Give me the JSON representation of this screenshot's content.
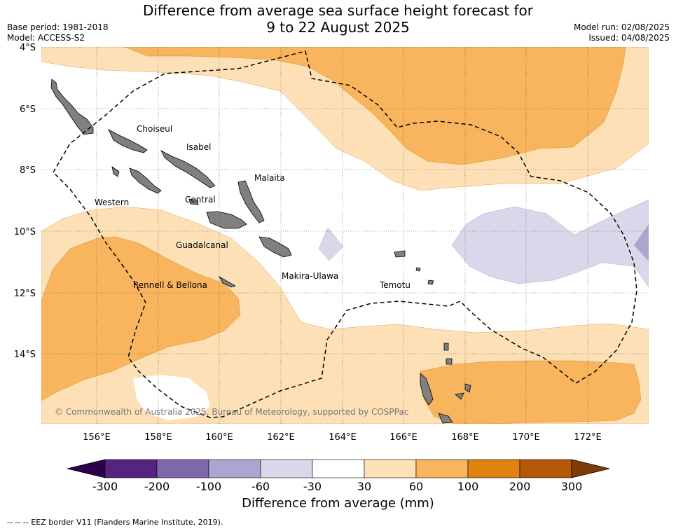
{
  "title": {
    "line1": "Difference from average sea surface height forecast for",
    "line2": "9 to 22 August 2025"
  },
  "meta_left": {
    "base_period": "Base period: 1981-2018",
    "model": "Model: ACCESS-S2"
  },
  "meta_right": {
    "model_run": "Model run: 02/08/2025",
    "issued": "Issued: 04/08/2025"
  },
  "lat_labels": [
    "4°S",
    "6°S",
    "8°S",
    "10°S",
    "12°S",
    "14°S"
  ],
  "lon_labels": [
    "156°E",
    "158°E",
    "160°E",
    "162°E",
    "164°E",
    "166°E",
    "168°E",
    "170°E",
    "172°E"
  ],
  "regions": {
    "choiseul": "Choiseul",
    "isabel": "Isabel",
    "malaita": "Malaita",
    "western": "Western",
    "central": "Central",
    "guadalcanal": "Guadalcanal",
    "makira": "Makira-Ulawa",
    "rennell": "Rennell & Bellona",
    "temotu": "Temotu"
  },
  "copyright": "© Commonwealth of Australia 2025, Bureau of Meteorology, supported by COSPPac",
  "colorbar": {
    "title": "Difference from average (mm)",
    "ticks": [
      "-300",
      "-200",
      "-100",
      "-60",
      "-30",
      "30",
      "60",
      "100",
      "200",
      "300"
    ],
    "colors": [
      "#56237e",
      "#7e6aaa",
      "#ada4cf",
      "#d8d8ea",
      "#ffffff",
      "#fde0b5",
      "#f9b45e",
      "#e0820f",
      "#b35806"
    ],
    "under_color": "#2d004b",
    "over_color": "#7f3b08"
  },
  "footnote": "--  --  -- EEZ border V11 (Flanders Marine Institute, 2019).",
  "colors": {
    "land": "#808080",
    "light_orange": "#fde0b5",
    "orange": "#f9b45e",
    "light_purple": "#d8d8ea",
    "purple": "#ada4cf"
  }
}
